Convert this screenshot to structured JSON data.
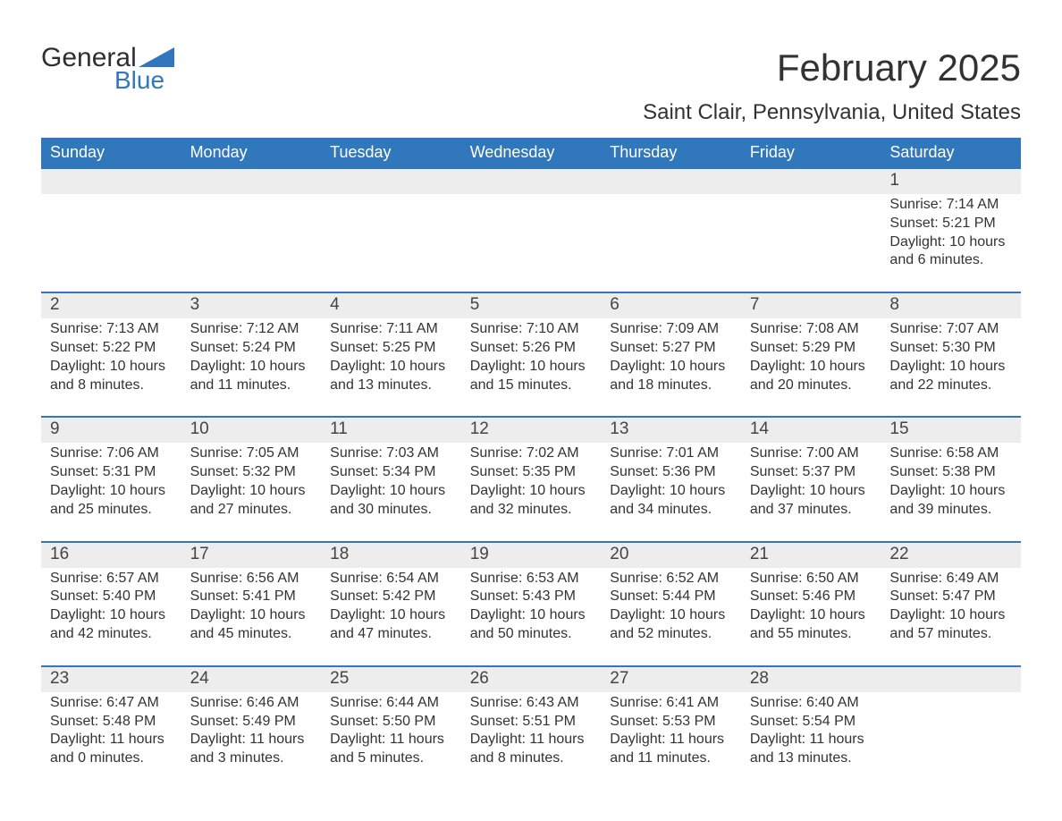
{
  "logo": {
    "word1": "General",
    "word2": "Blue",
    "accent_color": "#3177bb",
    "text_color": "#2f2f2f"
  },
  "title": "February 2025",
  "subtitle": "Saint Clair, Pennsylvania, United States",
  "header_bg": "#3177bb",
  "header_fg": "#ffffff",
  "daynum_bg": "#ededed",
  "separator_color": "#3177bb",
  "text_color": "#333333",
  "weekdays": [
    "Sunday",
    "Monday",
    "Tuesday",
    "Wednesday",
    "Thursday",
    "Friday",
    "Saturday"
  ],
  "weeks": [
    {
      "nums": [
        "",
        "",
        "",
        "",
        "",
        "",
        "1"
      ],
      "cells": [
        "",
        "",
        "",
        "",
        "",
        "",
        "Sunrise: 7:14 AM\nSunset: 5:21 PM\nDaylight: 10 hours and 6 minutes."
      ]
    },
    {
      "nums": [
        "2",
        "3",
        "4",
        "5",
        "6",
        "7",
        "8"
      ],
      "cells": [
        "Sunrise: 7:13 AM\nSunset: 5:22 PM\nDaylight: 10 hours and 8 minutes.",
        "Sunrise: 7:12 AM\nSunset: 5:24 PM\nDaylight: 10 hours and 11 minutes.",
        "Sunrise: 7:11 AM\nSunset: 5:25 PM\nDaylight: 10 hours and 13 minutes.",
        "Sunrise: 7:10 AM\nSunset: 5:26 PM\nDaylight: 10 hours and 15 minutes.",
        "Sunrise: 7:09 AM\nSunset: 5:27 PM\nDaylight: 10 hours and 18 minutes.",
        "Sunrise: 7:08 AM\nSunset: 5:29 PM\nDaylight: 10 hours and 20 minutes.",
        "Sunrise: 7:07 AM\nSunset: 5:30 PM\nDaylight: 10 hours and 22 minutes."
      ]
    },
    {
      "nums": [
        "9",
        "10",
        "11",
        "12",
        "13",
        "14",
        "15"
      ],
      "cells": [
        "Sunrise: 7:06 AM\nSunset: 5:31 PM\nDaylight: 10 hours and 25 minutes.",
        "Sunrise: 7:05 AM\nSunset: 5:32 PM\nDaylight: 10 hours and 27 minutes.",
        "Sunrise: 7:03 AM\nSunset: 5:34 PM\nDaylight: 10 hours and 30 minutes.",
        "Sunrise: 7:02 AM\nSunset: 5:35 PM\nDaylight: 10 hours and 32 minutes.",
        "Sunrise: 7:01 AM\nSunset: 5:36 PM\nDaylight: 10 hours and 34 minutes.",
        "Sunrise: 7:00 AM\nSunset: 5:37 PM\nDaylight: 10 hours and 37 minutes.",
        "Sunrise: 6:58 AM\nSunset: 5:38 PM\nDaylight: 10 hours and 39 minutes."
      ]
    },
    {
      "nums": [
        "16",
        "17",
        "18",
        "19",
        "20",
        "21",
        "22"
      ],
      "cells": [
        "Sunrise: 6:57 AM\nSunset: 5:40 PM\nDaylight: 10 hours and 42 minutes.",
        "Sunrise: 6:56 AM\nSunset: 5:41 PM\nDaylight: 10 hours and 45 minutes.",
        "Sunrise: 6:54 AM\nSunset: 5:42 PM\nDaylight: 10 hours and 47 minutes.",
        "Sunrise: 6:53 AM\nSunset: 5:43 PM\nDaylight: 10 hours and 50 minutes.",
        "Sunrise: 6:52 AM\nSunset: 5:44 PM\nDaylight: 10 hours and 52 minutes.",
        "Sunrise: 6:50 AM\nSunset: 5:46 PM\nDaylight: 10 hours and 55 minutes.",
        "Sunrise: 6:49 AM\nSunset: 5:47 PM\nDaylight: 10 hours and 57 minutes."
      ]
    },
    {
      "nums": [
        "23",
        "24",
        "25",
        "26",
        "27",
        "28",
        ""
      ],
      "cells": [
        "Sunrise: 6:47 AM\nSunset: 5:48 PM\nDaylight: 11 hours and 0 minutes.",
        "Sunrise: 6:46 AM\nSunset: 5:49 PM\nDaylight: 11 hours and 3 minutes.",
        "Sunrise: 6:44 AM\nSunset: 5:50 PM\nDaylight: 11 hours and 5 minutes.",
        "Sunrise: 6:43 AM\nSunset: 5:51 PM\nDaylight: 11 hours and 8 minutes.",
        "Sunrise: 6:41 AM\nSunset: 5:53 PM\nDaylight: 11 hours and 11 minutes.",
        "Sunrise: 6:40 AM\nSunset: 5:54 PM\nDaylight: 11 hours and 13 minutes.",
        ""
      ]
    }
  ]
}
